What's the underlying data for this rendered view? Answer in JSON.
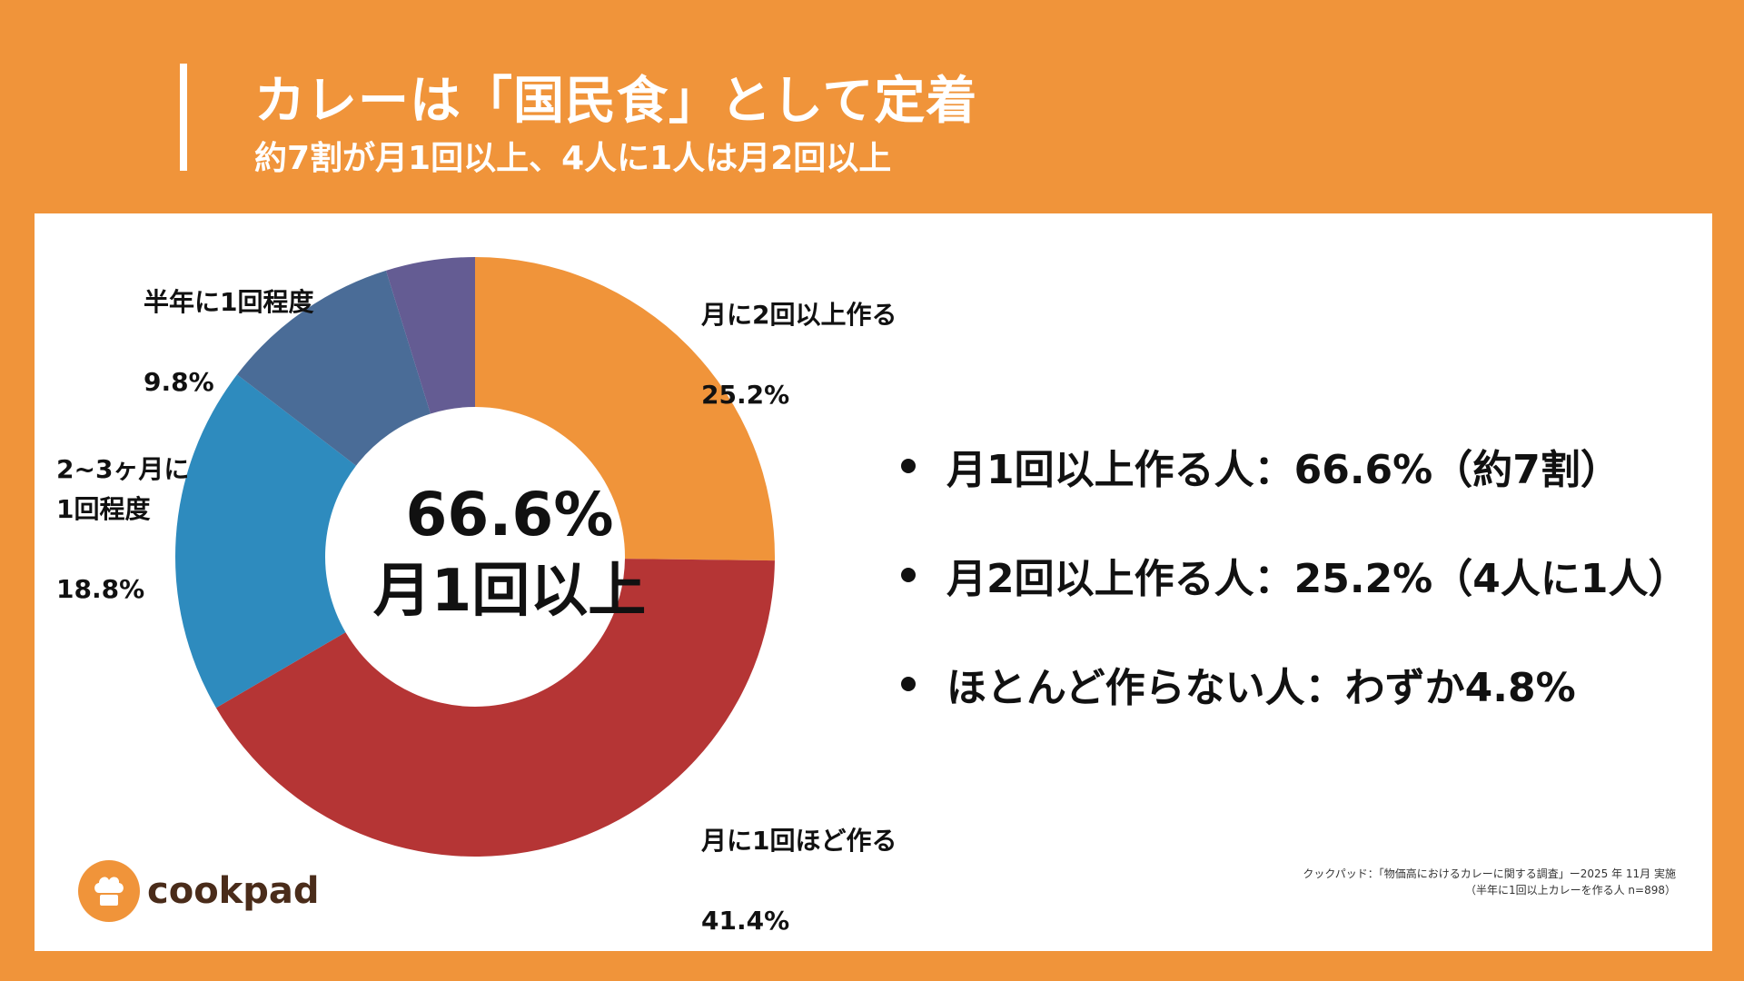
{
  "header": {
    "title": "カレーは「国民食」として定着",
    "subtitle": "約7割が月1回以上、4人に1人は月2回以上"
  },
  "chart_data": {
    "type": "pie",
    "donut": true,
    "start": "top, clockwise",
    "slices": [
      {
        "label": "月に2回以上作る",
        "value": 25.2,
        "value_label": "25.2%",
        "color": "#F0943A"
      },
      {
        "label": "月に1回ほど作る",
        "value": 41.4,
        "value_label": "41.4%",
        "color": "#B53535"
      },
      {
        "label": "2~3ヶ月に\n1回程度",
        "value": 18.8,
        "value_label": "18.8%",
        "color": "#2E8BBE"
      },
      {
        "label": "半年に1回程度",
        "value": 9.8,
        "value_label": "9.8%",
        "color": "#4A6C97"
      },
      {
        "label": "",
        "value": 4.8,
        "value_label": "",
        "color": "#645C93"
      }
    ],
    "center": {
      "value": "66.6%",
      "caption": "月1回以上"
    }
  },
  "bullets": [
    "月1回以上作る人：66.6%（約7割）",
    "月2回以上作る人：25.2%（4人に1人）",
    "ほとんど作らない人：わずか4.8%"
  ],
  "logo": {
    "text": "cookpad",
    "icon": "chef-hat-icon"
  },
  "source": {
    "line1": "クックパッド：「物価高におけるカレーに関する調査」ー2025 年 11月 実施",
    "line2": "（半年に1回以上カレーを作る人 n=898）"
  }
}
